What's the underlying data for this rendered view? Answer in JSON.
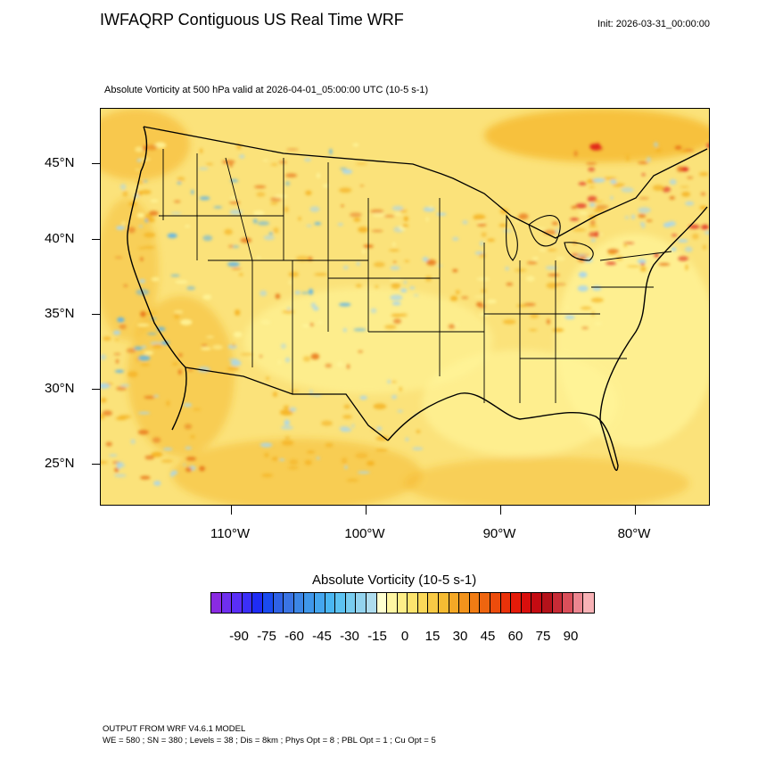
{
  "header": {
    "title": "IWFAQRP Contiguous US Real Time WRF",
    "init": "Init: 2026-03-31_00:00:00",
    "subtitle": "Absolute Vorticity at 500 hPa valid at 2026-04-01_05:00:00 UTC   (10-5 s-1)"
  },
  "map": {
    "lat_labels": [
      "45°N",
      "40°N",
      "35°N",
      "30°N",
      "25°N"
    ],
    "lon_labels": [
      "110°W",
      "100°W",
      "90°W",
      "80°W"
    ],
    "field_colors": {
      "background": "#fbe27a",
      "light_yellow": "#fff59a",
      "orange": "#f5b324",
      "dark_orange": "#e8761a",
      "red": "#e02418",
      "light_blue": "#a8d6ec",
      "blue": "#5fb4e6"
    }
  },
  "colorbar": {
    "title": "Absolute Vorticity  (10-5 s-1)",
    "labels": [
      "-90",
      "-75",
      "-60",
      "-45",
      "-30",
      "-15",
      "0",
      "15",
      "30",
      "45",
      "60",
      "75",
      "90"
    ],
    "colors": [
      "#8a2be2",
      "#6f2fef",
      "#5a2ef7",
      "#3b2ff8",
      "#1f2cf5",
      "#1a4bf0",
      "#2f62e6",
      "#3a74e4",
      "#3c86e6",
      "#3f97ea",
      "#44a6ee",
      "#4ab6f1",
      "#5cc2f1",
      "#78ccef",
      "#93d3ee",
      "#aedcee",
      "#ffffcf",
      "#fff6a3",
      "#ffee88",
      "#fde46e",
      "#fbd859",
      "#f8ca45",
      "#f6bb33",
      "#f4a826",
      "#f2931c",
      "#f07c14",
      "#ee650f",
      "#ec4c0c",
      "#ea320a",
      "#e51b09",
      "#d90f0d",
      "#c40b12",
      "#b4121a",
      "#c72b36",
      "#da4f5a",
      "#ec8690",
      "#f8b2b6"
    ]
  },
  "footer": {
    "line1": "OUTPUT FROM WRF V4.6.1 MODEL",
    "line2": "WE = 580 ; SN = 380 ; Levels = 38 ; Dis = 8km ; Phys Opt = 8 ; PBL Opt = 1 ; Cu Opt = 5"
  }
}
